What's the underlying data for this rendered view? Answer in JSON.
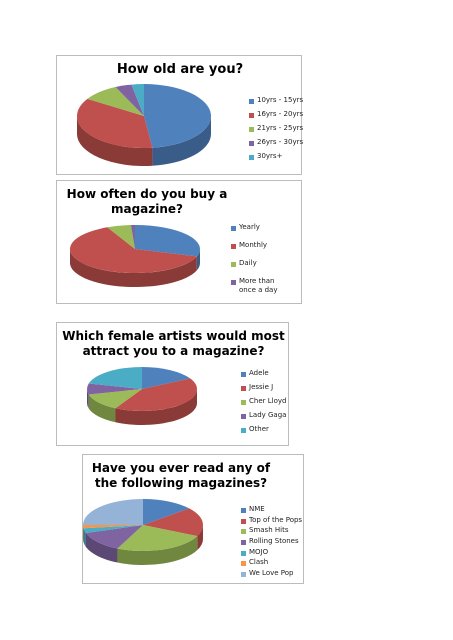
{
  "chart_data": [
    {
      "type": "pie",
      "title": "How old are you?",
      "categories": [
        "10yrs - 15yrs",
        "16yrs - 20yrs",
        "21yrs - 25yrs",
        "26yrs - 30yrs",
        "30yrs+"
      ],
      "values": [
        48,
        36,
        9,
        4,
        3
      ],
      "legend": "right"
    },
    {
      "type": "pie",
      "title": "How often do you buy a magazine?",
      "categories": [
        "Yearly",
        "Monthly",
        "Daily",
        "More than once a day"
      ],
      "values": [
        30,
        63,
        6,
        1
      ],
      "legend": "right"
    },
    {
      "type": "pie",
      "title": "Which female artists would most attract you to a magazine?",
      "categories": [
        "Adele",
        "Jessie J",
        "Cher Lloyd",
        "Lady Gaga",
        "Other"
      ],
      "values": [
        17,
        41,
        13,
        8,
        21
      ],
      "legend": "right"
    },
    {
      "type": "pie",
      "title": "Have you ever read any of the following magazines?",
      "categories": [
        "NME",
        "Top of the Pops",
        "Smash Hits",
        "Rolling Stones",
        "MOJO",
        "Clash",
        "We Love Pop"
      ],
      "values": [
        14,
        18,
        25,
        13,
        3,
        2,
        25
      ],
      "legend": "right"
    }
  ],
  "colors": [
    "#4f81bd",
    "#c0504d",
    "#9bbb59",
    "#8064a2",
    "#4bacc6",
    "#f79646",
    "#95b3d7"
  ]
}
